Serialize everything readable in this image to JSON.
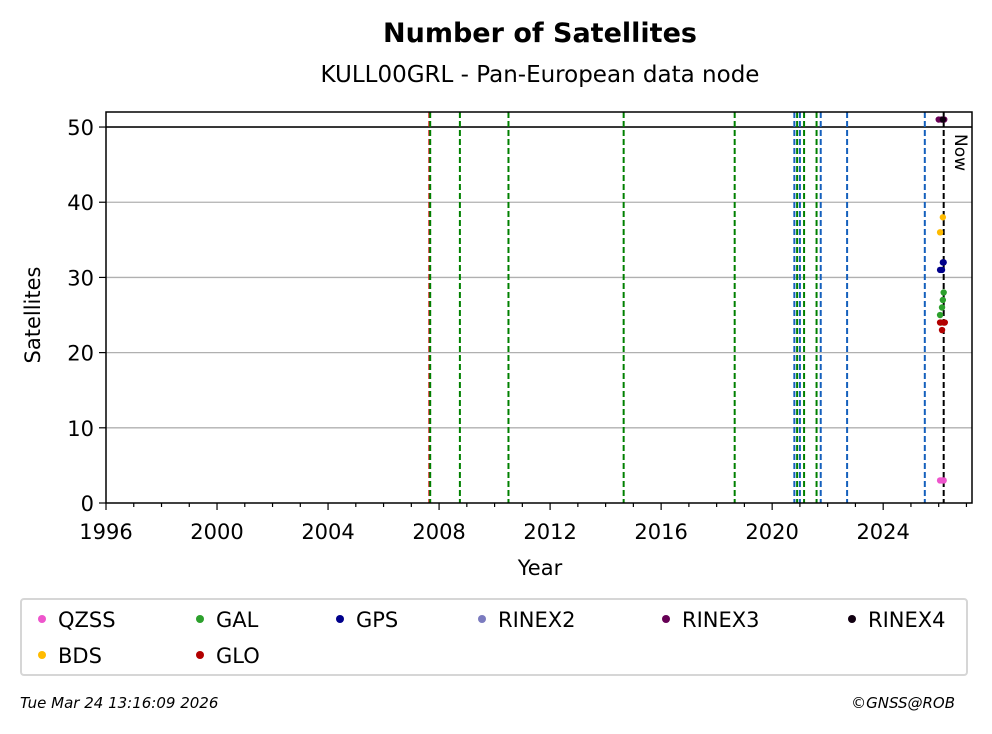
{
  "chart_data": {
    "type": "scatter",
    "title": "Number of Satellites",
    "subtitle": "KULL00GRL - Pan-European data node",
    "xlabel": "Year",
    "ylabel": "Satellites",
    "xlim": [
      1996.0,
      2027.2
    ],
    "ylim": [
      0,
      52
    ],
    "xticks": [
      1996,
      2000,
      2004,
      2008,
      2012,
      2016,
      2020,
      2024
    ],
    "yticks": [
      0,
      10,
      20,
      30,
      40,
      50
    ],
    "grid": "horizontal",
    "legend_placement": "below",
    "reference_line": {
      "y": 50,
      "color": "#000000"
    },
    "now": {
      "x": 2026.23,
      "label": "Now"
    },
    "event_lines": [
      {
        "x": 2007.65,
        "color": "#cc0000",
        "style": "dashed"
      },
      {
        "x": 2007.68,
        "color": "#008000",
        "style": "dashed"
      },
      {
        "x": 2008.75,
        "color": "#008000",
        "style": "dashed"
      },
      {
        "x": 2010.5,
        "color": "#008000",
        "style": "dashed"
      },
      {
        "x": 2014.65,
        "color": "#008000",
        "style": "dashed"
      },
      {
        "x": 2018.65,
        "color": "#008000",
        "style": "dashed"
      },
      {
        "x": 2020.8,
        "color": "#1560bd",
        "style": "dashed"
      },
      {
        "x": 2020.9,
        "color": "#008000",
        "style": "dashed"
      },
      {
        "x": 2021.0,
        "color": "#1560bd",
        "style": "dashed"
      },
      {
        "x": 2021.15,
        "color": "#008000",
        "style": "dashed"
      },
      {
        "x": 2021.6,
        "color": "#008000",
        "style": "dashed"
      },
      {
        "x": 2021.75,
        "color": "#1560bd",
        "style": "dashed"
      },
      {
        "x": 2022.7,
        "color": "#1560bd",
        "style": "dashed"
      },
      {
        "x": 2025.5,
        "color": "#1560bd",
        "style": "dashed"
      },
      {
        "x": 2026.18,
        "color": "#000000",
        "style": "dashed"
      }
    ],
    "series": [
      {
        "name": "QZSS",
        "color": "#ee55cc",
        "points": [
          [
            2026.05,
            3
          ],
          [
            2026.12,
            3
          ],
          [
            2026.18,
            3
          ]
        ]
      },
      {
        "name": "GAL",
        "color": "#2ca02c",
        "points": [
          [
            2026.05,
            25
          ],
          [
            2026.12,
            26
          ],
          [
            2026.15,
            27
          ],
          [
            2026.18,
            28
          ],
          [
            2026.08,
            24
          ]
        ]
      },
      {
        "name": "GPS",
        "color": "#00008b",
        "points": [
          [
            2026.05,
            31
          ],
          [
            2026.12,
            31
          ],
          [
            2026.15,
            32
          ],
          [
            2026.18,
            32
          ]
        ]
      },
      {
        "name": "RINEX2",
        "color": "#7b7bbf",
        "points": []
      },
      {
        "name": "RINEX3",
        "color": "#660055",
        "points": [
          [
            2026.0,
            51
          ],
          [
            2026.1,
            51
          ],
          [
            2026.2,
            51
          ]
        ]
      },
      {
        "name": "RINEX4",
        "color": "#110011",
        "points": [
          [
            2026.15,
            51
          ]
        ]
      },
      {
        "name": "BDS",
        "color": "#ffbb00",
        "points": [
          [
            2026.05,
            36
          ],
          [
            2026.15,
            38
          ]
        ]
      },
      {
        "name": "GLO",
        "color": "#b20000",
        "points": [
          [
            2026.05,
            24
          ],
          [
            2026.12,
            23
          ],
          [
            2026.18,
            24
          ],
          [
            2026.22,
            24
          ]
        ]
      }
    ]
  },
  "legend": [
    {
      "label": "QZSS",
      "color": "#ee55cc"
    },
    {
      "label": "GAL",
      "color": "#2ca02c"
    },
    {
      "label": "GPS",
      "color": "#00008b"
    },
    {
      "label": "RINEX2",
      "color": "#7b7bbf"
    },
    {
      "label": "RINEX3",
      "color": "#660055"
    },
    {
      "label": "RINEX4",
      "color": "#110011"
    },
    {
      "label": "BDS",
      "color": "#ffbb00"
    },
    {
      "label": "GLO",
      "color": "#b20000"
    }
  ],
  "footer": {
    "timestamp": "Tue Mar 24 13:16:09 2026",
    "credit": "©GNSS@ROB"
  }
}
